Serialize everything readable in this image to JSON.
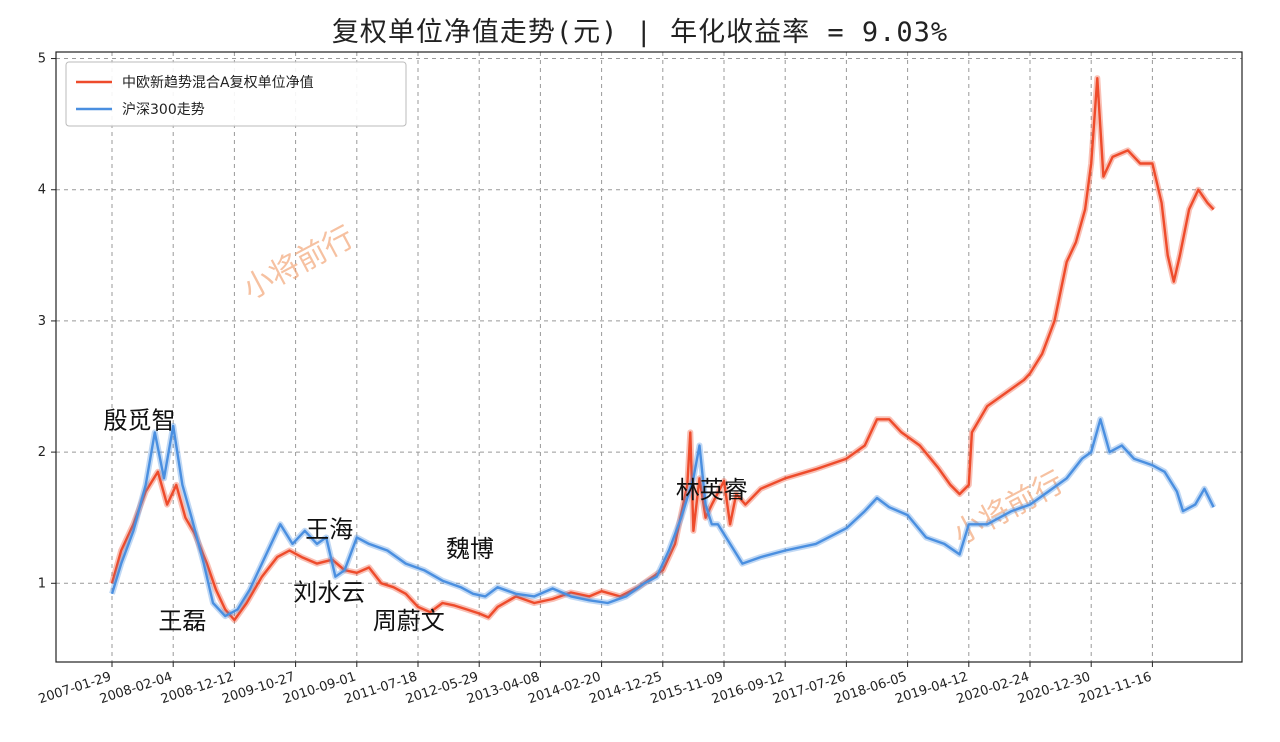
{
  "chart_data": {
    "type": "line",
    "title": "复权单位净值走势(元) | 年化收益率 = 9.03%",
    "xlabel": "",
    "ylabel": "",
    "ylim": [
      0.4,
      5.05
    ],
    "yticks": [
      1,
      2,
      3,
      4,
      5
    ],
    "x_tick_labels": [
      "2007-01-29",
      "2008-02-04",
      "2008-12-12",
      "2009-10-27",
      "2010-09-01",
      "2011-07-18",
      "2012-05-29",
      "2013-04-08",
      "2014-02-20",
      "2014-12-25",
      "2015-11-09",
      "2016-09-12",
      "2017-07-26",
      "2018-06-05",
      "2019-04-12",
      "2020-02-24",
      "2020-12-30",
      "2021-11-16"
    ],
    "grid": true,
    "legend_position": "top-left",
    "series": [
      {
        "name": "中欧新趋势混合A复权单位净值",
        "color": "#ee4b2b",
        "points": [
          [
            0,
            1.0
          ],
          [
            0.15,
            1.25
          ],
          [
            0.35,
            1.45
          ],
          [
            0.55,
            1.7
          ],
          [
            0.75,
            1.85
          ],
          [
            0.9,
            1.6
          ],
          [
            1.05,
            1.75
          ],
          [
            1.2,
            1.5
          ],
          [
            1.35,
            1.38
          ],
          [
            1.55,
            1.15
          ],
          [
            1.7,
            0.95
          ],
          [
            1.85,
            0.8
          ],
          [
            2.0,
            0.72
          ],
          [
            2.2,
            0.85
          ],
          [
            2.45,
            1.05
          ],
          [
            2.7,
            1.2
          ],
          [
            2.9,
            1.25
          ],
          [
            3.1,
            1.2
          ],
          [
            3.35,
            1.15
          ],
          [
            3.6,
            1.18
          ],
          [
            3.8,
            1.1
          ],
          [
            4.0,
            1.08
          ],
          [
            4.2,
            1.12
          ],
          [
            4.4,
            1.0
          ],
          [
            4.6,
            0.97
          ],
          [
            4.8,
            0.92
          ],
          [
            5.0,
            0.82
          ],
          [
            5.2,
            0.78
          ],
          [
            5.4,
            0.85
          ],
          [
            5.6,
            0.83
          ],
          [
            5.8,
            0.8
          ],
          [
            6.0,
            0.77
          ],
          [
            6.15,
            0.74
          ],
          [
            6.3,
            0.82
          ],
          [
            6.6,
            0.9
          ],
          [
            6.9,
            0.85
          ],
          [
            7.2,
            0.88
          ],
          [
            7.5,
            0.93
          ],
          [
            7.8,
            0.9
          ],
          [
            8.0,
            0.94
          ],
          [
            8.3,
            0.9
          ],
          [
            8.6,
            0.97
          ],
          [
            8.9,
            1.07
          ],
          [
            9.0,
            1.1
          ],
          [
            9.2,
            1.3
          ],
          [
            9.4,
            1.75
          ],
          [
            9.45,
            2.15
          ],
          [
            9.5,
            1.4
          ],
          [
            9.6,
            1.8
          ],
          [
            9.7,
            1.5
          ],
          [
            9.8,
            1.6
          ],
          [
            10.0,
            1.78
          ],
          [
            10.1,
            1.45
          ],
          [
            10.2,
            1.68
          ],
          [
            10.35,
            1.6
          ],
          [
            10.6,
            1.72
          ],
          [
            11.0,
            1.8
          ],
          [
            11.5,
            1.87
          ],
          [
            12.0,
            1.95
          ],
          [
            12.3,
            2.05
          ],
          [
            12.5,
            2.25
          ],
          [
            12.7,
            2.25
          ],
          [
            12.9,
            2.15
          ],
          [
            13.2,
            2.05
          ],
          [
            13.5,
            1.88
          ],
          [
            13.7,
            1.75
          ],
          [
            13.85,
            1.68
          ],
          [
            14.0,
            1.75
          ],
          [
            14.05,
            2.15
          ],
          [
            14.3,
            2.35
          ],
          [
            14.6,
            2.45
          ],
          [
            14.9,
            2.55
          ],
          [
            15.0,
            2.6
          ],
          [
            15.2,
            2.75
          ],
          [
            15.4,
            3.0
          ],
          [
            15.6,
            3.45
          ],
          [
            15.75,
            3.6
          ],
          [
            15.9,
            3.85
          ],
          [
            16.0,
            4.2
          ],
          [
            16.1,
            4.85
          ],
          [
            16.2,
            4.1
          ],
          [
            16.35,
            4.25
          ],
          [
            16.6,
            4.3
          ],
          [
            16.8,
            4.2
          ],
          [
            17.0,
            4.2
          ],
          [
            17.15,
            3.9
          ],
          [
            17.25,
            3.5
          ],
          [
            17.35,
            3.3
          ],
          [
            17.45,
            3.5
          ],
          [
            17.6,
            3.85
          ],
          [
            17.75,
            4.0
          ],
          [
            17.9,
            3.9
          ],
          [
            18.0,
            3.85
          ]
        ]
      },
      {
        "name": "沪深300走势",
        "color": "#4a8fe0",
        "points": [
          [
            0,
            0.92
          ],
          [
            0.15,
            1.15
          ],
          [
            0.35,
            1.4
          ],
          [
            0.55,
            1.75
          ],
          [
            0.7,
            2.15
          ],
          [
            0.85,
            1.8
          ],
          [
            1.0,
            2.2
          ],
          [
            1.15,
            1.75
          ],
          [
            1.3,
            1.5
          ],
          [
            1.5,
            1.15
          ],
          [
            1.65,
            0.85
          ],
          [
            1.85,
            0.75
          ],
          [
            2.05,
            0.8
          ],
          [
            2.25,
            0.95
          ],
          [
            2.45,
            1.15
          ],
          [
            2.75,
            1.45
          ],
          [
            2.95,
            1.3
          ],
          [
            3.15,
            1.4
          ],
          [
            3.35,
            1.3
          ],
          [
            3.5,
            1.35
          ],
          [
            3.65,
            1.05
          ],
          [
            3.8,
            1.1
          ],
          [
            4.0,
            1.35
          ],
          [
            4.2,
            1.3
          ],
          [
            4.5,
            1.25
          ],
          [
            4.8,
            1.15
          ],
          [
            5.1,
            1.1
          ],
          [
            5.4,
            1.02
          ],
          [
            5.7,
            0.97
          ],
          [
            5.9,
            0.92
          ],
          [
            6.1,
            0.9
          ],
          [
            6.3,
            0.97
          ],
          [
            6.6,
            0.92
          ],
          [
            6.9,
            0.9
          ],
          [
            7.2,
            0.96
          ],
          [
            7.5,
            0.9
          ],
          [
            7.8,
            0.87
          ],
          [
            8.1,
            0.85
          ],
          [
            8.4,
            0.9
          ],
          [
            8.7,
            1.0
          ],
          [
            8.9,
            1.05
          ],
          [
            9.1,
            1.25
          ],
          [
            9.3,
            1.5
          ],
          [
            9.5,
            1.8
          ],
          [
            9.6,
            2.05
          ],
          [
            9.7,
            1.6
          ],
          [
            9.8,
            1.45
          ],
          [
            9.9,
            1.45
          ],
          [
            10.1,
            1.3
          ],
          [
            10.3,
            1.15
          ],
          [
            10.6,
            1.2
          ],
          [
            11.0,
            1.25
          ],
          [
            11.5,
            1.3
          ],
          [
            12.0,
            1.42
          ],
          [
            12.3,
            1.55
          ],
          [
            12.5,
            1.65
          ],
          [
            12.7,
            1.58
          ],
          [
            13.0,
            1.52
          ],
          [
            13.3,
            1.35
          ],
          [
            13.6,
            1.3
          ],
          [
            13.85,
            1.22
          ],
          [
            14.0,
            1.45
          ],
          [
            14.3,
            1.45
          ],
          [
            14.7,
            1.55
          ],
          [
            15.0,
            1.6
          ],
          [
            15.3,
            1.7
          ],
          [
            15.6,
            1.8
          ],
          [
            15.85,
            1.95
          ],
          [
            16.0,
            2.0
          ],
          [
            16.15,
            2.25
          ],
          [
            16.3,
            2.0
          ],
          [
            16.5,
            2.05
          ],
          [
            16.7,
            1.95
          ],
          [
            17.0,
            1.9
          ],
          [
            17.2,
            1.85
          ],
          [
            17.4,
            1.7
          ],
          [
            17.5,
            1.55
          ],
          [
            17.7,
            1.6
          ],
          [
            17.85,
            1.72
          ],
          [
            18.0,
            1.58
          ]
        ]
      }
    ],
    "annotations": [
      {
        "text": "殷觅智",
        "x": 0.45,
        "y": 2.18
      },
      {
        "text": "王磊",
        "x": 1.15,
        "y": 0.65
      },
      {
        "text": "王海",
        "x": 3.55,
        "y": 1.35
      },
      {
        "text": "刘水云",
        "x": 3.55,
        "y": 0.87
      },
      {
        "text": "周蔚文",
        "x": 4.85,
        "y": 0.65
      },
      {
        "text": "魏博",
        "x": 5.85,
        "y": 1.2
      },
      {
        "text": "林英睿",
        "x": 9.8,
        "y": 1.65
      }
    ],
    "watermarks": [
      "小将前行",
      "小将前行"
    ]
  }
}
